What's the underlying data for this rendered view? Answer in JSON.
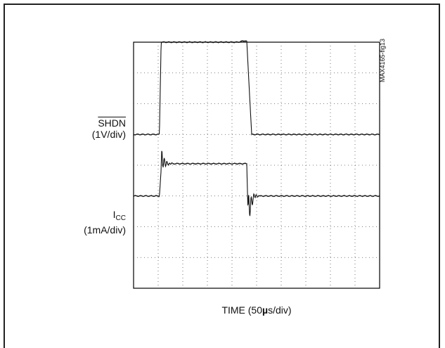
{
  "chart_data": {
    "type": "line",
    "title": "",
    "figure_id": "MAX4165-fig13",
    "xlabel": {
      "prefix": "TIME (50",
      "mu": "µ",
      "suffix": "s/div)"
    },
    "grid": true,
    "divisions": {
      "x": 10,
      "y": 8
    },
    "traces": [
      {
        "name": "SHDN",
        "label_top": "SHDN",
        "label_bottom": "(1V/div)",
        "overline": true,
        "unit_per_div": "1V/div",
        "points": [
          [
            0,
            1.0
          ],
          [
            1.05,
            1.0
          ],
          [
            1.12,
            4.0
          ],
          [
            4.25,
            4.0
          ],
          [
            4.5,
            4.05
          ],
          [
            4.6,
            4.03
          ],
          [
            4.8,
            1.0
          ],
          [
            10,
            1.0
          ]
        ]
      },
      {
        "name": "ICC",
        "label_top_main": "I",
        "label_top_sub": "CC",
        "label_bottom": "(1mA/div)",
        "unit_per_div": "1mA/div",
        "points": [
          [
            0,
            -1.0
          ],
          [
            1.05,
            -1.0
          ],
          [
            1.15,
            0.2
          ],
          [
            1.3,
            0.05
          ],
          [
            4.6,
            0.05
          ],
          [
            4.65,
            -1.5
          ],
          [
            4.9,
            -1.0
          ],
          [
            10,
            -1.0
          ]
        ]
      }
    ]
  }
}
